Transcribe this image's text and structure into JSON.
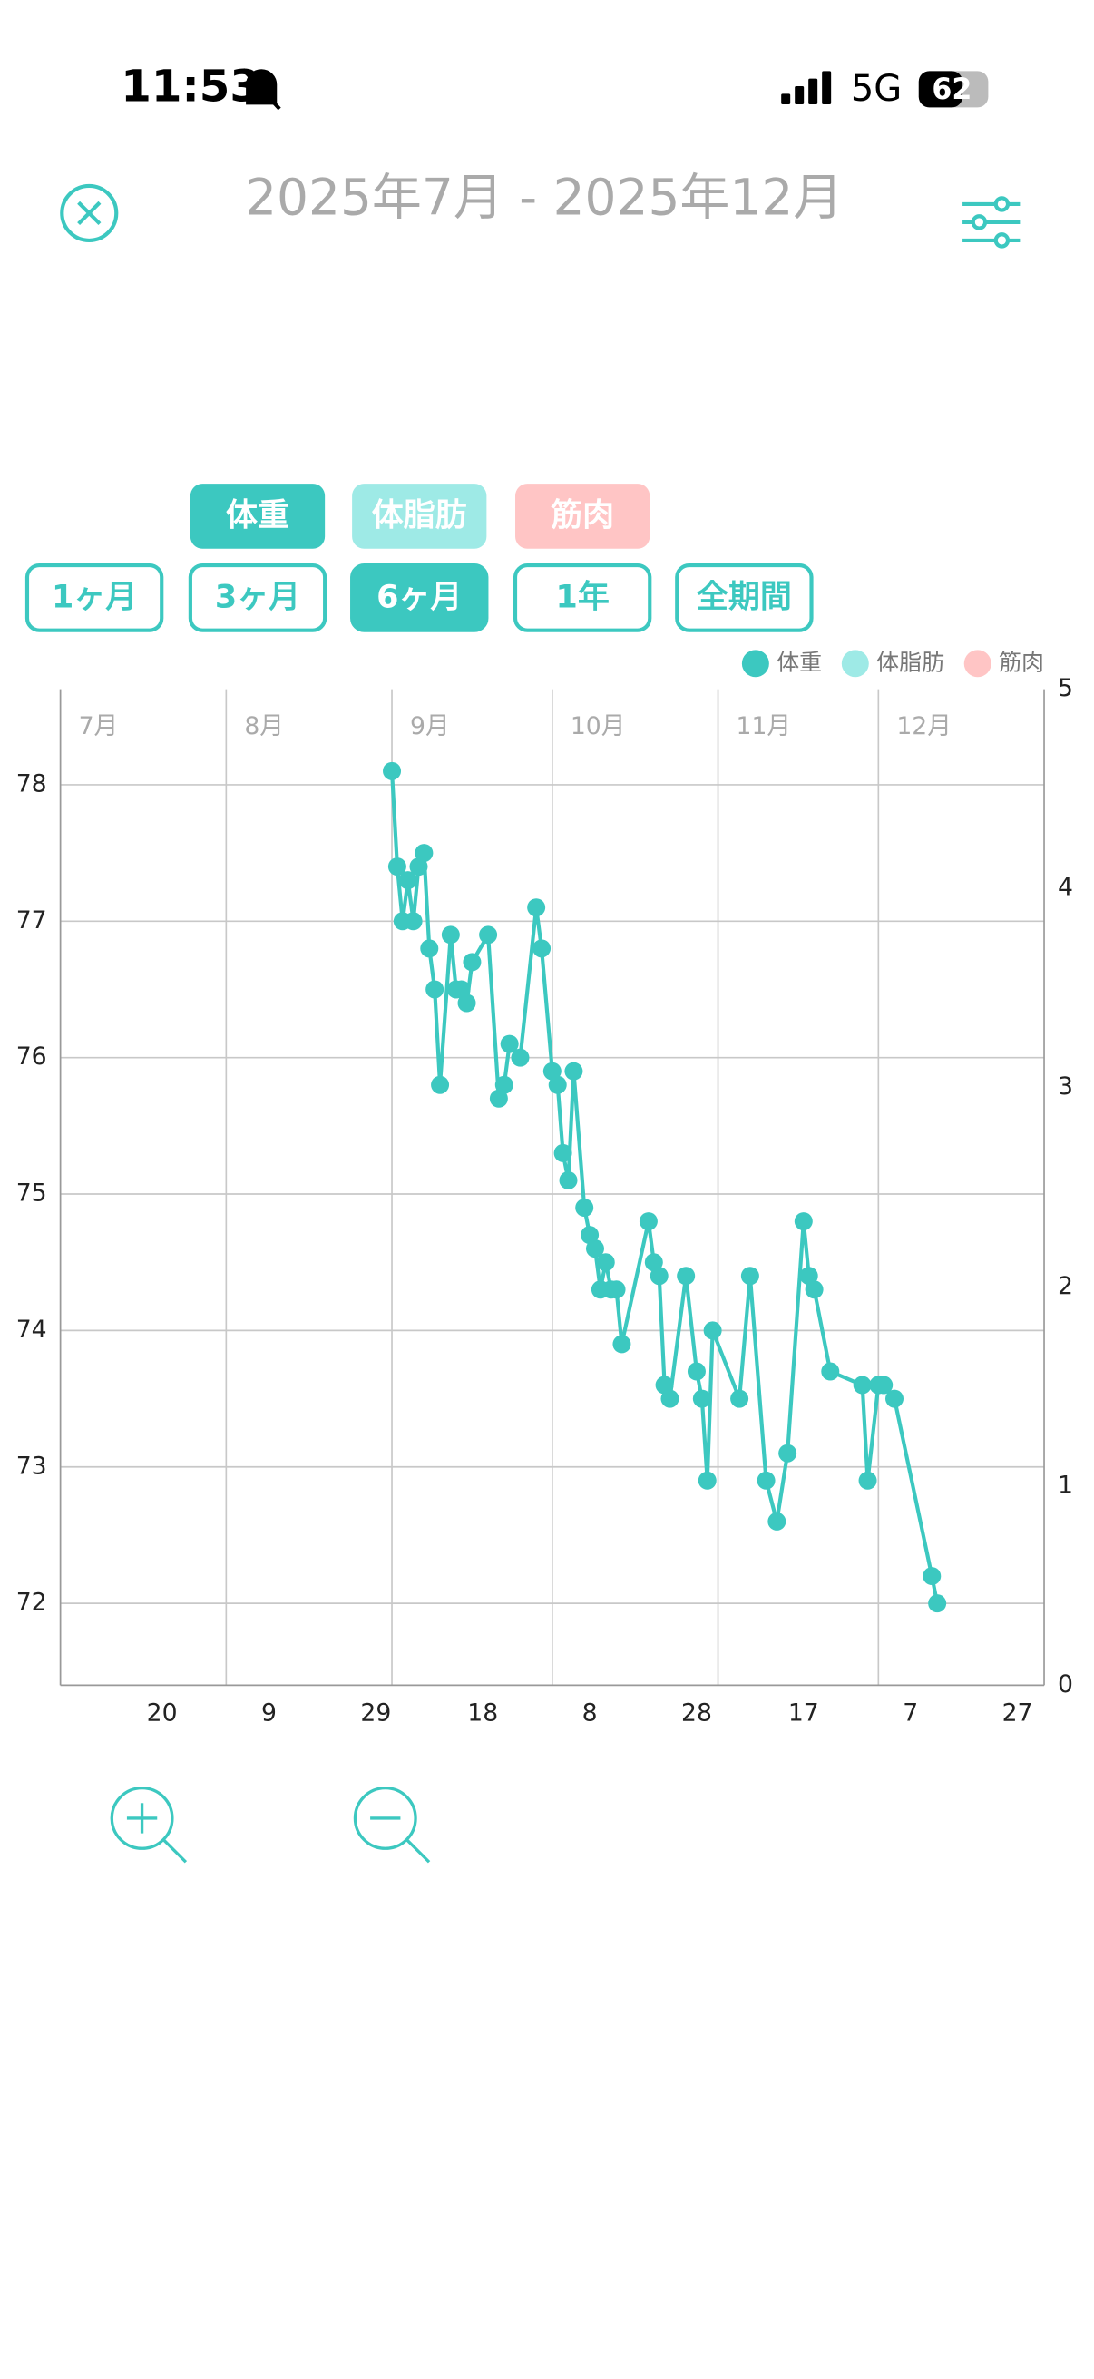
{
  "status_bar": {
    "time": "11:53",
    "network": "5G",
    "battery": 62
  },
  "header": {
    "title": "2025年7月 - 2025年12月"
  },
  "metric_buttons": [
    "体重",
    "体脂肪",
    "筋肉"
  ],
  "period_buttons": [
    "1ヶ月",
    "3ヶ月",
    "6ヶ月",
    "1年",
    "全期間"
  ],
  "chart_data": {
    "type": "line",
    "xlim": [
      "2025-07-01",
      "2026-01-01"
    ],
    "xticks": [
      {
        "value": "2025-07-20",
        "label": "20"
      },
      {
        "value": "2025-08-09",
        "label": "9"
      },
      {
        "value": "2025-08-29",
        "label": "29"
      },
      {
        "value": "2025-09-18",
        "label": "18"
      },
      {
        "value": "2025-10-08",
        "label": "8"
      },
      {
        "value": "2025-10-28",
        "label": "28"
      },
      {
        "value": "2025-11-17",
        "label": "17"
      },
      {
        "value": "2025-12-07",
        "label": "7"
      },
      {
        "value": "2025-12-27",
        "label": "27"
      }
    ],
    "month_ticks": [
      {
        "value": "2025-07-01",
        "label": "7月"
      },
      {
        "value": "2025-08-01",
        "label": "8月"
      },
      {
        "value": "2025-09-01",
        "label": "9月"
      },
      {
        "value": "2025-10-01",
        "label": "10月"
      },
      {
        "value": "2025-11-01",
        "label": "11月"
      },
      {
        "value": "2025-12-01",
        "label": "12月"
      }
    ],
    "ylim": [
      71.4,
      78.7
    ],
    "yticks": [
      72,
      73,
      74,
      75,
      76,
      77,
      78
    ],
    "y2lim": [
      0,
      5
    ],
    "y2ticks": [
      0,
      1,
      2,
      3,
      4,
      5
    ],
    "grid": true,
    "legend": "top-right",
    "series": [
      {
        "name": "体重",
        "color": "#3cc8c0",
        "x": [
          "2025-09-01",
          "2025-09-02",
          "2025-09-03",
          "2025-09-04",
          "2025-09-05",
          "2025-09-06",
          "2025-09-07",
          "2025-09-08",
          "2025-09-09",
          "2025-09-10",
          "2025-09-12",
          "2025-09-13",
          "2025-09-14",
          "2025-09-15",
          "2025-09-16",
          "2025-09-19",
          "2025-09-21",
          "2025-09-22",
          "2025-09-23",
          "2025-09-25",
          "2025-09-28",
          "2025-09-29",
          "2025-10-01",
          "2025-10-02",
          "2025-10-03",
          "2025-10-04",
          "2025-10-05",
          "2025-10-07",
          "2025-10-08",
          "2025-10-09",
          "2025-10-10",
          "2025-10-11",
          "2025-10-12",
          "2025-10-13",
          "2025-10-14",
          "2025-10-19",
          "2025-10-20",
          "2025-10-21",
          "2025-10-22",
          "2025-10-23",
          "2025-10-26",
          "2025-10-28",
          "2025-10-29",
          "2025-10-30",
          "2025-10-31",
          "2025-11-05",
          "2025-11-07",
          "2025-11-10",
          "2025-11-12",
          "2025-11-14",
          "2025-11-17",
          "2025-11-18",
          "2025-11-19",
          "2025-11-22",
          "2025-11-28",
          "2025-11-29",
          "2025-12-01",
          "2025-12-02",
          "2025-12-04",
          "2025-12-11",
          "2025-12-12"
        ],
        "values": [
          78.1,
          77.4,
          77.0,
          77.3,
          77.0,
          77.4,
          77.5,
          76.8,
          76.5,
          75.8,
          76.9,
          76.5,
          76.5,
          76.4,
          76.7,
          76.9,
          75.7,
          75.8,
          76.1,
          76.0,
          77.1,
          76.8,
          75.9,
          75.8,
          75.3,
          75.1,
          75.9,
          74.9,
          74.7,
          74.6,
          74.3,
          74.5,
          74.3,
          74.3,
          73.9,
          74.8,
          74.5,
          74.4,
          73.6,
          73.5,
          74.4,
          73.7,
          73.5,
          72.9,
          74.0,
          73.5,
          74.4,
          72.9,
          72.6,
          73.1,
          74.8,
          74.4,
          74.3,
          73.7,
          73.6,
          72.9,
          73.6,
          73.6,
          73.5,
          72.2,
          72.0
        ]
      },
      {
        "name": "体脂肪",
        "color": "#9eeae6",
        "x": [],
        "values": []
      },
      {
        "name": "筋肉",
        "color": "#ffc5c5",
        "x": [],
        "values": []
      }
    ]
  }
}
